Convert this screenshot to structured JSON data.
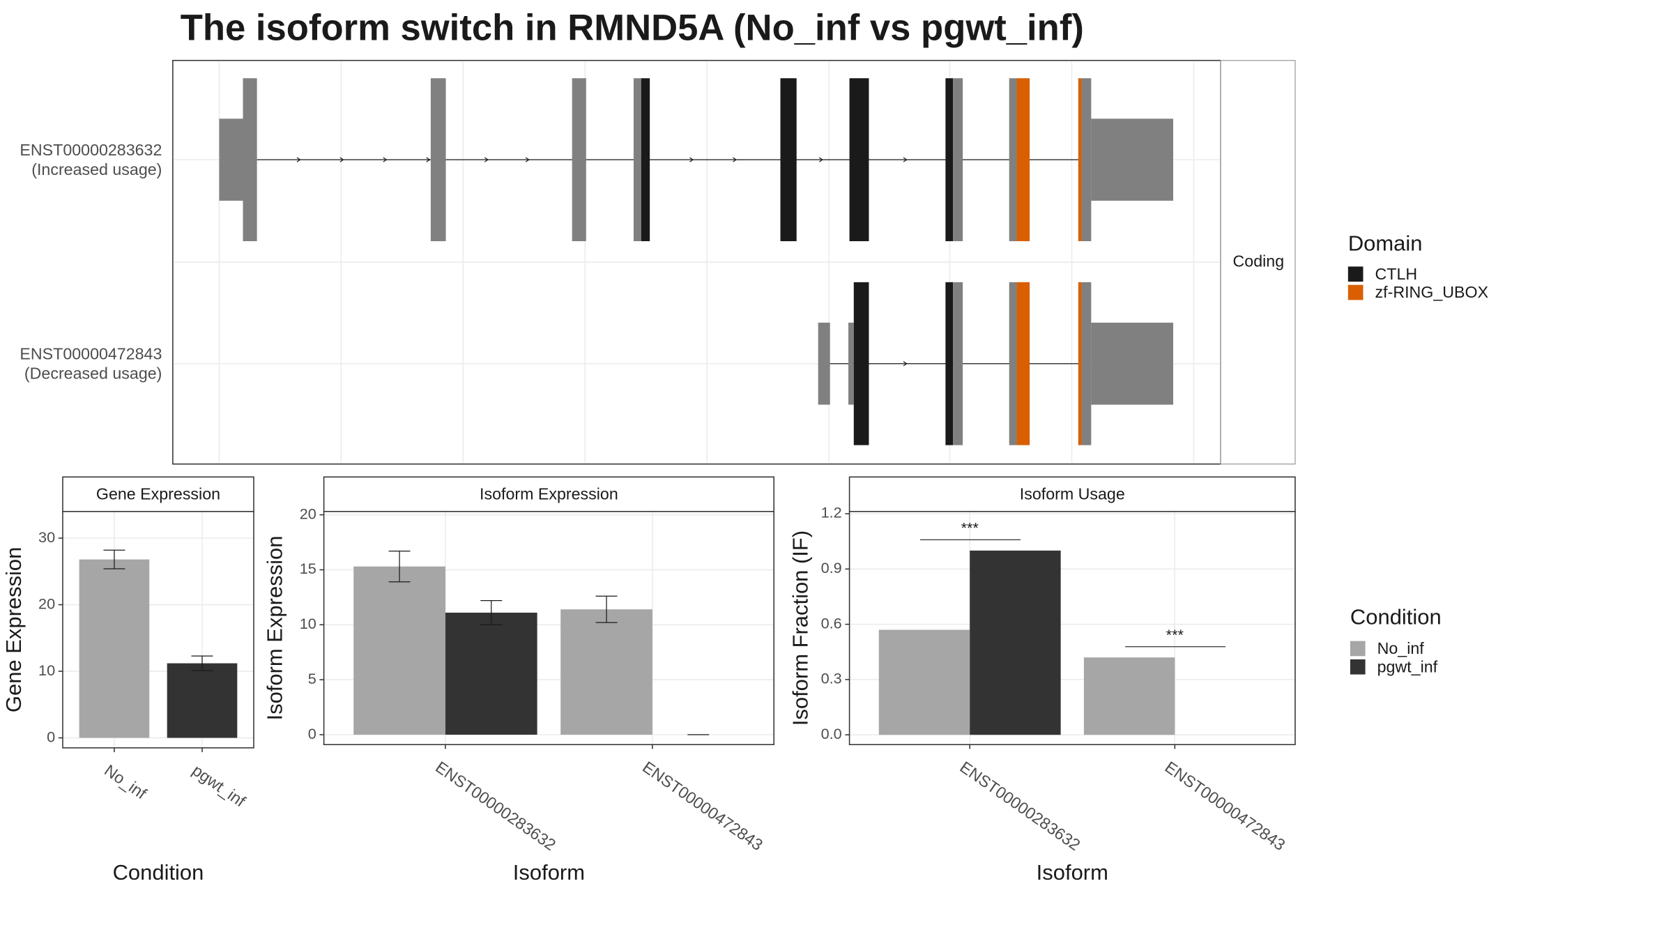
{
  "title": "The isoform switch in RMND5A (No_inf vs pgwt_inf)",
  "structure": {
    "transcripts": [
      {
        "id": "ENST00000283632",
        "usage": "(Increased usage)"
      },
      {
        "id": "ENST00000472843",
        "usage": "(Decreased usage)"
      }
    ],
    "facet": "Coding",
    "legend": {
      "title": "Domain",
      "items": [
        {
          "name": "CTLH",
          "color": "#1a1a1a"
        },
        {
          "name": "zf-RING_UBOX",
          "color": "#d95f02"
        }
      ]
    }
  },
  "condition_legend": {
    "title": "Condition"
  },
  "chart_data": [
    {
      "type": "bar",
      "title": "Gene Expression",
      "xlabel": "Condition",
      "ylabel": "Gene Expression",
      "categories": [
        "No_inf",
        "pgwt_inf"
      ],
      "values": [
        26.8,
        11.2
      ],
      "errors": [
        1.4,
        1.1
      ],
      "colors": [
        "#a6a6a6",
        "#333333"
      ],
      "ylim": [
        -1.5,
        34
      ],
      "yticks": [
        0,
        10,
        20,
        30
      ],
      "grid": true
    },
    {
      "type": "grouped_bar",
      "title": "Isoform Expression",
      "xlabel": "Isoform",
      "ylabel": "Isoform Expression",
      "categories": [
        "ENST00000283632",
        "ENST00000472843"
      ],
      "series": [
        {
          "name": "No_inf",
          "color": "#a6a6a6",
          "values": [
            15.3,
            11.4
          ],
          "errors": [
            1.4,
            1.2
          ]
        },
        {
          "name": "pgwt_inf",
          "color": "#333333",
          "values": [
            11.1,
            0
          ],
          "errors": [
            1.1,
            0
          ]
        }
      ],
      "ylim": [
        -0.9,
        20.3
      ],
      "yticks": [
        0,
        5,
        10,
        15,
        20
      ],
      "grid": true
    },
    {
      "type": "grouped_bar",
      "title": "Isoform Usage",
      "xlabel": "Isoform",
      "ylabel": "Isoform Fraction (IF)",
      "categories": [
        "ENST00000283632",
        "ENST00000472843"
      ],
      "series": [
        {
          "name": "No_inf",
          "color": "#a6a6a6",
          "values": [
            0.57,
            0.42
          ]
        },
        {
          "name": "pgwt_inf",
          "color": "#333333",
          "values": [
            1.0,
            0
          ]
        }
      ],
      "annotations": [
        "***",
        "***"
      ],
      "ylim": [
        -0.053,
        1.212
      ],
      "yticks": [
        {
          "value": 0,
          "label": "0.0"
        },
        0.3,
        0.6,
        0.9,
        1.2
      ],
      "grid": true
    }
  ]
}
